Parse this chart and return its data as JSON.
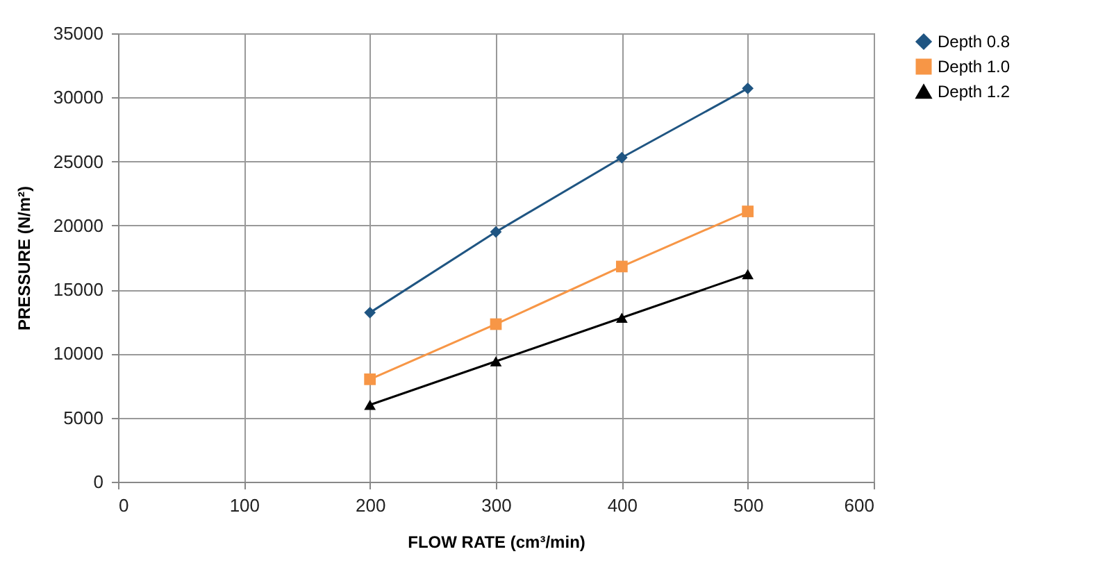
{
  "chart_data": {
    "type": "line",
    "xlabel": "FLOW RATE (cm³/min)",
    "ylabel": "PRESSURE (N/m²)",
    "x": [
      200,
      300,
      400,
      500
    ],
    "series": [
      {
        "name": "Depth 0.8",
        "color": "#1f5582",
        "marker": "diamond",
        "values": [
          13200,
          19500,
          25300,
          30700
        ]
      },
      {
        "name": "Depth 1.0",
        "color": "#f79646",
        "marker": "square",
        "values": [
          8000,
          12300,
          16800,
          21100
        ]
      },
      {
        "name": "Depth 1.2",
        "color": "#000000",
        "marker": "triangle",
        "values": [
          6000,
          9400,
          12800,
          16200
        ]
      }
    ],
    "xlim": [
      0,
      600
    ],
    "xticks": [
      0,
      100,
      200,
      300,
      400,
      500,
      600
    ],
    "ylim": [
      0,
      35000
    ],
    "yticks": [
      0,
      5000,
      10000,
      15000,
      20000,
      25000,
      30000,
      35000
    ],
    "grid": true,
    "legend": "right",
    "line_style": "solid"
  }
}
